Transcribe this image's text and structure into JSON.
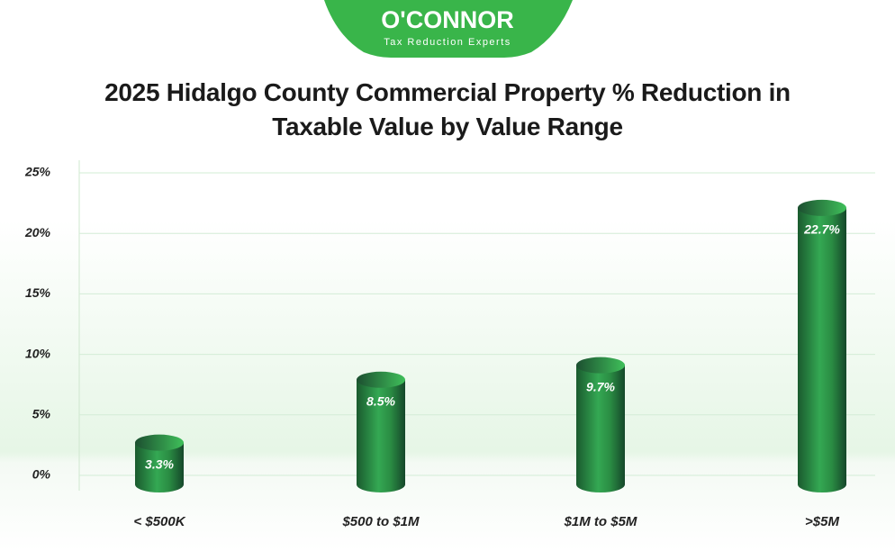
{
  "brand": {
    "name": "O'CONNOR",
    "tagline": "Tax Reduction Experts"
  },
  "chart_data": {
    "type": "bar",
    "title": "2025 Hidalgo County Commercial Property % Reduction in Taxable Value by Value Range",
    "categories": [
      "< $500K",
      "$500 to $1M",
      "$1M to $5M",
      ">$5M"
    ],
    "values": [
      3.3,
      8.5,
      9.7,
      22.7
    ],
    "value_labels": [
      "3.3%",
      "8.5%",
      "9.7%",
      "22.7%"
    ],
    "color": "#2e9e44",
    "ylim": [
      0,
      25
    ],
    "yticks": [
      {
        "value": 0,
        "label": "0%"
      },
      {
        "value": 5,
        "label": "5%"
      },
      {
        "value": 10,
        "label": "10%"
      },
      {
        "value": 15,
        "label": "15%"
      },
      {
        "value": 20,
        "label": "20%"
      },
      {
        "value": 25,
        "label": "25%"
      }
    ],
    "grid": true
  }
}
